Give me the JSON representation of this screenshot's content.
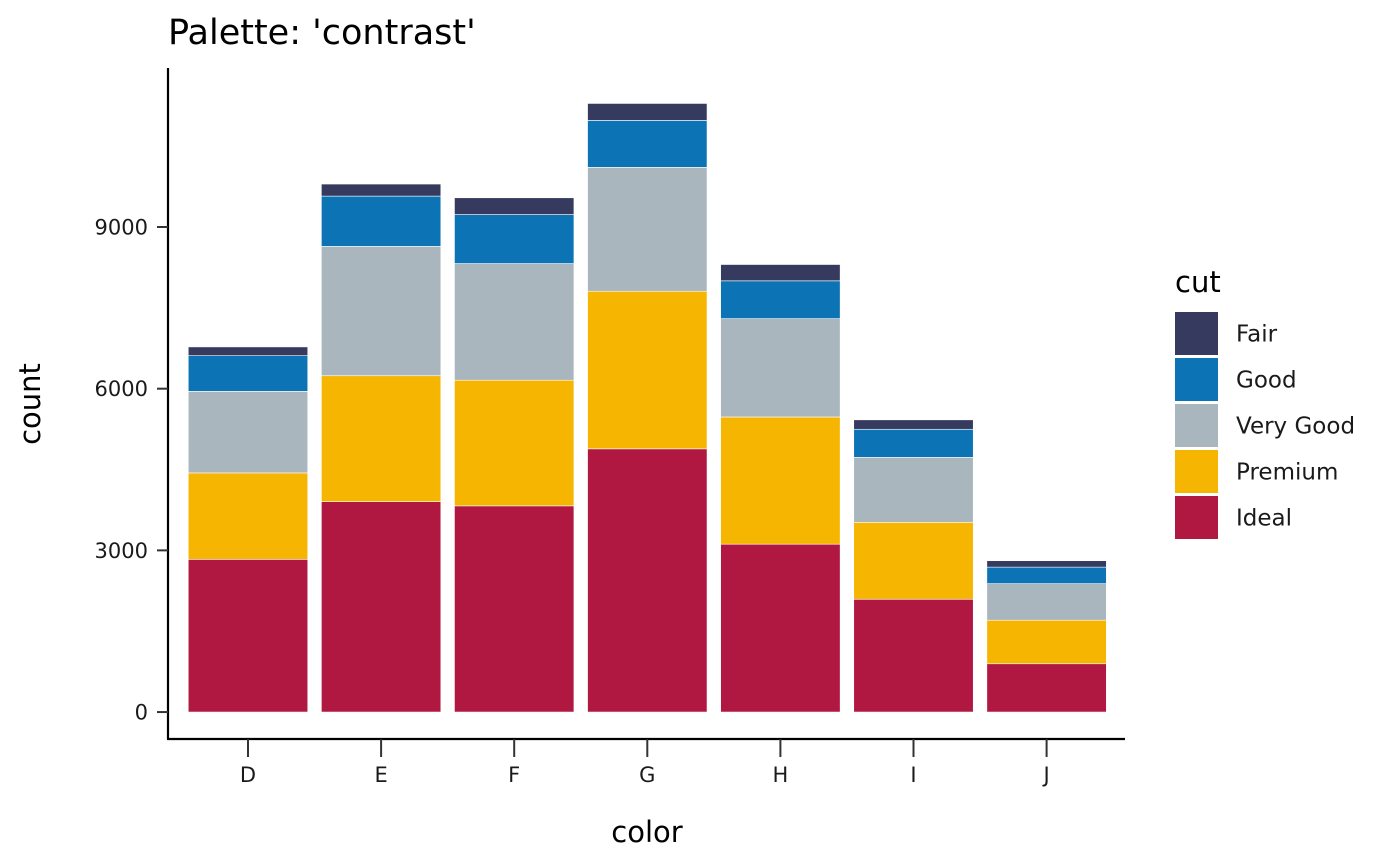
{
  "chart_data": {
    "type": "bar",
    "stacked": true,
    "title": "Palette: 'contrast'",
    "xlabel": "color",
    "ylabel": "count",
    "categories": [
      "D",
      "E",
      "F",
      "G",
      "H",
      "I",
      "J"
    ],
    "yticks": [
      0,
      3000,
      6000,
      9000
    ],
    "ylim": [
      -500,
      11950
    ],
    "legend": {
      "title": "cut",
      "position": "right"
    },
    "series": [
      {
        "name": "Fair",
        "color": "#363A5E",
        "values": [
          163,
          224,
          312,
          314,
          303,
          175,
          119
        ]
      },
      {
        "name": "Good",
        "color": "#0C73B4",
        "values": [
          662,
          933,
          909,
          871,
          702,
          522,
          307
        ]
      },
      {
        "name": "Very Good",
        "color": "#A9B6BD",
        "values": [
          1513,
          2400,
          2164,
          2299,
          1824,
          1204,
          678
        ]
      },
      {
        "name": "Premium",
        "color": "#F6B500",
        "values": [
          1603,
          2337,
          2331,
          2924,
          2360,
          1428,
          808
        ]
      },
      {
        "name": "Ideal",
        "color": "#B01842",
        "values": [
          2834,
          3903,
          3826,
          4884,
          3115,
          2093,
          896
        ]
      }
    ]
  }
}
